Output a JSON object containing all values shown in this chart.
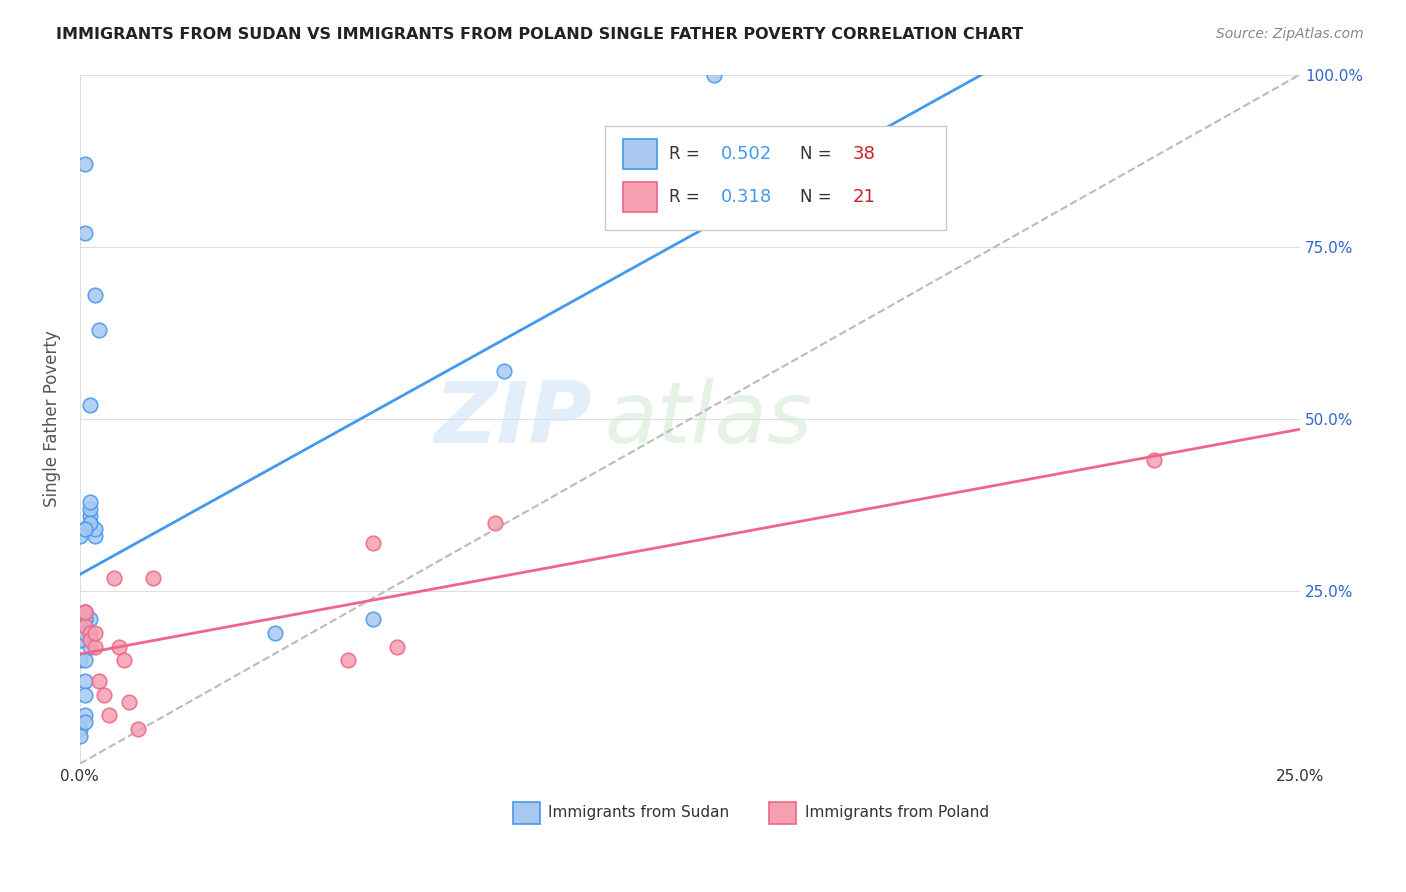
{
  "title": "IMMIGRANTS FROM SUDAN VS IMMIGRANTS FROM POLAND SINGLE FATHER POVERTY CORRELATION CHART",
  "source": "Source: ZipAtlas.com",
  "ylabel": "Single Father Poverty",
  "sudan_color": "#a8c8f0",
  "poland_color": "#f4a0b0",
  "sudan_line_color": "#4499ee",
  "poland_line_color": "#ee6688",
  "sudan_R": 0.502,
  "sudan_N": 38,
  "poland_R": 0.318,
  "poland_N": 21,
  "legend_R_color": "#3366cc",
  "legend_N_color": "#cc2222",
  "watermark_zip": "ZIP",
  "watermark_atlas": "atlas",
  "sudan_points_x": [
    0.0,
    0.002,
    0.001,
    0.003,
    0.001,
    0.002,
    0.002,
    0.002,
    0.002,
    0.003,
    0.001,
    0.001,
    0.001,
    0.0,
    0.0,
    0.0,
    0.001,
    0.002,
    0.001,
    0.001,
    0.001,
    0.0,
    0.0,
    0.001,
    0.0,
    0.001,
    0.002,
    0.0,
    0.004,
    0.003,
    0.002,
    0.001,
    0.001,
    0.001,
    0.087,
    0.13,
    0.06,
    0.04
  ],
  "sudan_points_y": [
    0.15,
    0.21,
    0.22,
    0.33,
    0.34,
    0.35,
    0.36,
    0.37,
    0.38,
    0.34,
    0.21,
    0.22,
    0.21,
    0.2,
    0.19,
    0.18,
    0.15,
    0.17,
    0.12,
    0.1,
    0.07,
    0.05,
    0.04,
    0.06,
    0.18,
    0.19,
    0.35,
    0.33,
    0.63,
    0.68,
    0.52,
    0.87,
    0.77,
    0.34,
    0.57,
    1.0,
    0.21,
    0.19
  ],
  "poland_points_x": [
    0.001,
    0.001,
    0.002,
    0.002,
    0.001,
    0.003,
    0.003,
    0.004,
    0.005,
    0.006,
    0.007,
    0.008,
    0.009,
    0.01,
    0.012,
    0.015,
    0.06,
    0.065,
    0.055,
    0.085,
    0.22
  ],
  "poland_points_y": [
    0.22,
    0.2,
    0.19,
    0.18,
    0.22,
    0.17,
    0.19,
    0.12,
    0.1,
    0.07,
    0.27,
    0.17,
    0.15,
    0.09,
    0.05,
    0.27,
    0.32,
    0.17,
    0.15,
    0.35,
    0.44
  ],
  "xlim": [
    0.0,
    0.25
  ],
  "ylim": [
    0.0,
    1.0
  ],
  "background_color": "#ffffff",
  "grid_color": "#dddddd"
}
